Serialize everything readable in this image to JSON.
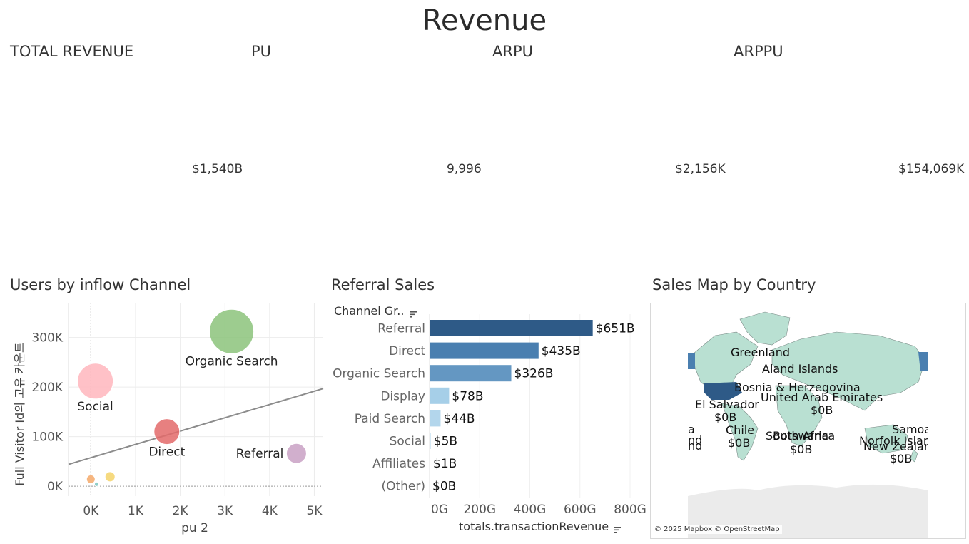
{
  "dashboard": {
    "title": "Revenue"
  },
  "kpis": [
    {
      "label": "TOTAL REVENUE",
      "value": "$1,540B"
    },
    {
      "label": "PU",
      "value": "9,996"
    },
    {
      "label": "ARPU",
      "value": "$2,156K"
    },
    {
      "label": "ARPPU",
      "value": "$154,069K"
    }
  ],
  "panels": {
    "scatter": {
      "title": "Users by inflow Channel"
    },
    "bar": {
      "title": "Referral Sales",
      "header": "Channel Gr..",
      "xlabel": "totals.transactionRevenue"
    },
    "map": {
      "title": "Sales Map by Country",
      "attribution": "© 2025 Mapbox © OpenStreetMap"
    }
  },
  "chart_data": [
    {
      "type": "scatter",
      "xlabel": "pu 2",
      "ylabel": "Full Visitor Id의 고유 카운트",
      "xlim": [
        -500,
        5200
      ],
      "ylim": [
        -20000,
        370000
      ],
      "x_ticks": [
        0,
        1000,
        2000,
        3000,
        4000,
        5000
      ],
      "x_tick_labels": [
        "0K",
        "1K",
        "2K",
        "3K",
        "4K",
        "5K"
      ],
      "y_ticks": [
        0,
        100000,
        200000,
        300000
      ],
      "y_tick_labels": [
        "0K",
        "100K",
        "200K",
        "300K"
      ],
      "trend_line": {
        "x": [
          -500,
          5200
        ],
        "y": [
          44000,
          197000
        ]
      },
      "points": [
        {
          "label": "Organic Search",
          "x": 3150,
          "y": 312000,
          "size": 31,
          "color": "#8cc37b"
        },
        {
          "label": "Social",
          "x": 100,
          "y": 212000,
          "size": 25,
          "color": "#ffb6bd"
        },
        {
          "label": "Direct",
          "x": 1700,
          "y": 110000,
          "size": 18,
          "color": "#e36a6a"
        },
        {
          "label": "Referral",
          "x": 4600,
          "y": 66000,
          "size": 14,
          "color": "#c9a1c4"
        },
        {
          "label": "",
          "x": 430,
          "y": 19000,
          "size": 7,
          "color": "#f5d46a"
        },
        {
          "label": "",
          "x": 0,
          "y": 14000,
          "size": 6,
          "color": "#f4a96a"
        },
        {
          "label": "",
          "x": 130,
          "y": 4000,
          "size": 3,
          "color": "#7cc6c0"
        }
      ]
    },
    {
      "type": "bar",
      "orientation": "horizontal",
      "categories": [
        "Referral",
        "Direct",
        "Organic Search",
        "Display",
        "Paid Search",
        "Social",
        "Affiliates",
        "(Other)"
      ],
      "values": [
        651,
        435,
        326,
        78,
        44,
        5,
        1,
        0
      ],
      "value_labels": [
        "$651B",
        "$435B",
        "$326B",
        "$78B",
        "$44B",
        "$5B",
        "$1B",
        "$0B"
      ],
      "colors": [
        "#2e5a87",
        "#4a7fb0",
        "#6497c2",
        "#a6cfe8",
        "#b3d6ec",
        "#c9e2f2",
        "#d6e9f5",
        "#e3f0f8"
      ],
      "xlabel": "totals.transactionRevenue",
      "xlim": [
        0,
        800
      ],
      "x_ticks": [
        0,
        200,
        400,
        600,
        800
      ],
      "x_tick_labels": [
        "0G",
        "200G",
        "400G",
        "600G",
        "800G"
      ]
    }
  ],
  "map_labels": {
    "greenland": "Greenland",
    "aland": "Aland Islands",
    "bosnia": "Bosnia & Herzegovina",
    "uae": "United Arab Emirates",
    "uae_val": "$0B",
    "el_salvador": "El Salvador",
    "el_salvador_val": "$0B",
    "chile": "Chile",
    "chile_val": "$0B",
    "south_africa": "South Africa",
    "botswana": "Botswana",
    "sa_val": "$0B",
    "samoa": "Samoa",
    "norfolk": "Norfolk Island",
    "new_zealand": "New Zealand",
    "nz_val": "$0B",
    "left_a": "a",
    "left_nd1": "nd",
    "left_nd2": "nd"
  }
}
